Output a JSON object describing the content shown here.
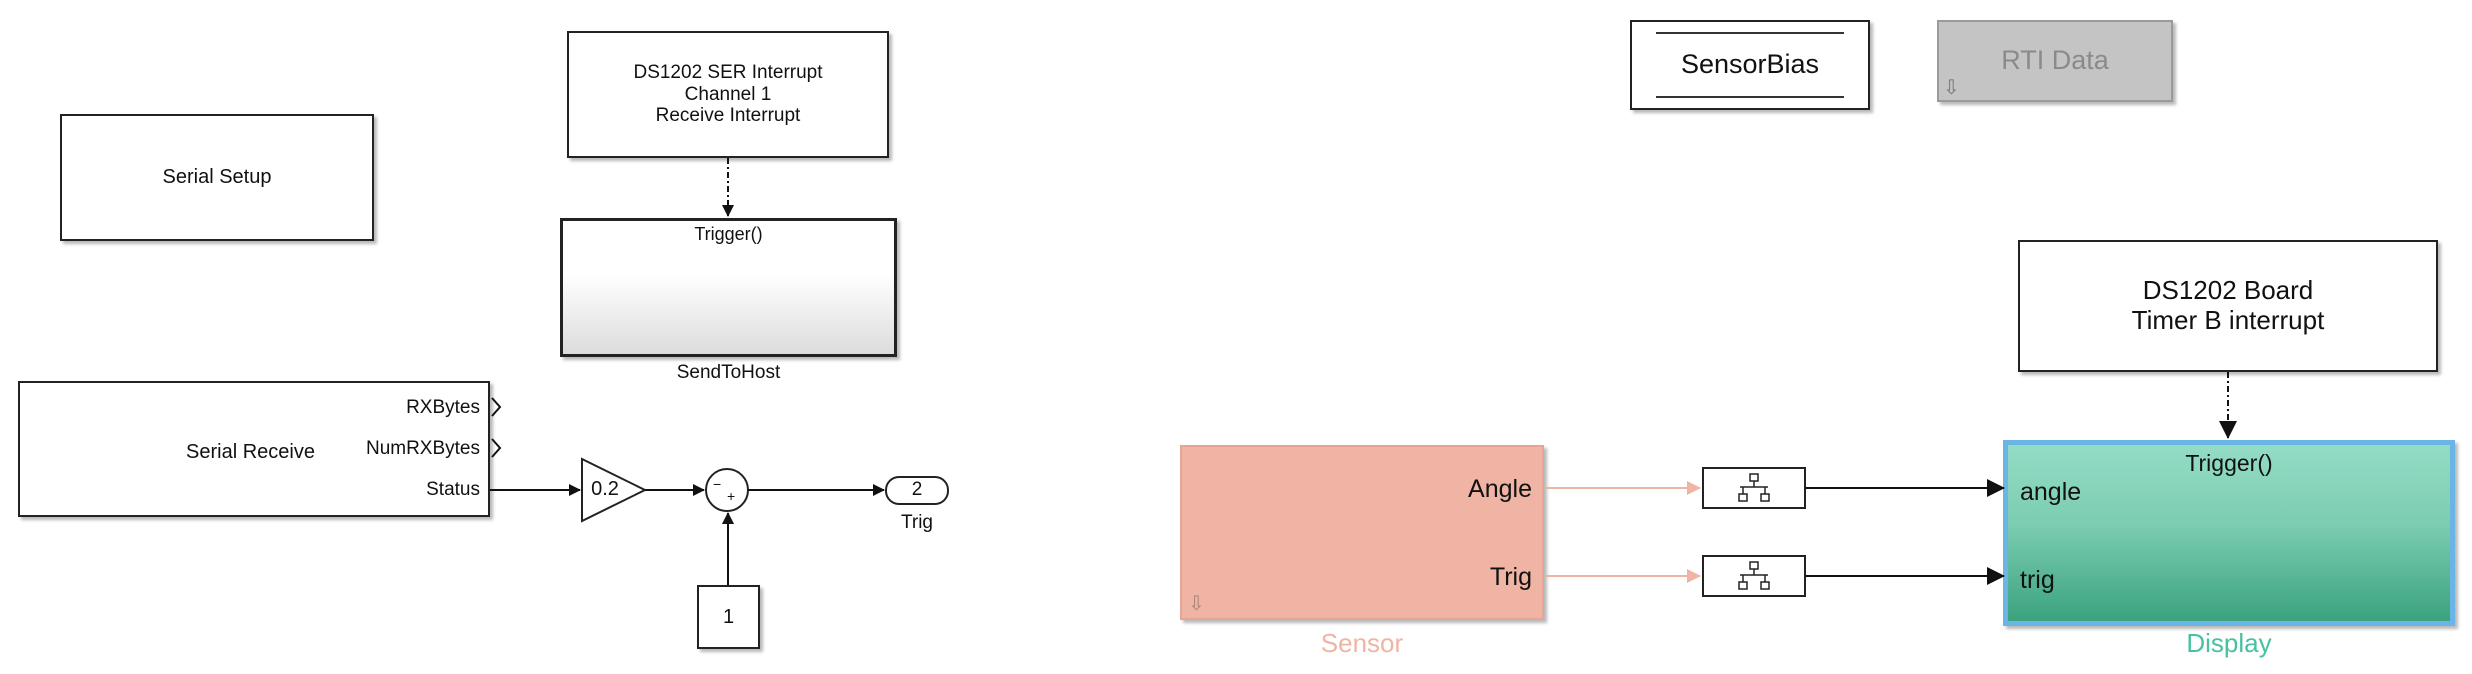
{
  "colors": {
    "sensor_fill": "#efb4a3",
    "sensor_label": "#efb4a3",
    "display_fill_top": "#93dcc5",
    "display_fill_bottom": "#3aa27e",
    "display_border": "#6ab4e6",
    "display_label": "#46c1a1",
    "rti_fill": "#c4c4c4",
    "rti_text": "#8a8a8a"
  },
  "blocks": {
    "serial_setup": {
      "label": "Serial Setup"
    },
    "ser_interrupt": {
      "label": "DS1202 SER Interrupt\nChannel 1\nReceive Interrupt"
    },
    "send_to_host": {
      "trigger_label": "Trigger()",
      "name": "SendToHost"
    },
    "serial_receive": {
      "label": "Serial Receive",
      "ports": [
        "RXBytes",
        "NumRXBytes",
        "Status"
      ]
    },
    "gain": {
      "value": "0.2"
    },
    "sum": {
      "signs_minus": "−",
      "signs_plus": "+"
    },
    "constant": {
      "value": "1"
    },
    "outport_trig": {
      "number": "2",
      "name": "Trig"
    },
    "sensor_bias": {
      "label": "SensorBias"
    },
    "rti_data": {
      "label": "RTI Data"
    },
    "timer_interrupt": {
      "label": "DS1202 Board\nTimer B interrupt"
    },
    "sensor": {
      "name": "Sensor",
      "ports": [
        "Angle",
        "Trig"
      ],
      "shortcut_icon": "shortcut-arrow-icon"
    },
    "display": {
      "name": "Display",
      "trigger_label": "Trigger()",
      "ports": [
        "angle",
        "trig"
      ]
    },
    "rate_transition_icon": "rate-transition-icon"
  }
}
